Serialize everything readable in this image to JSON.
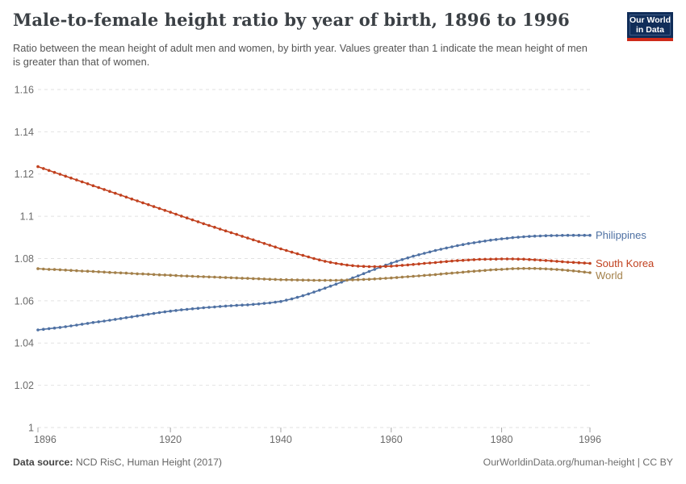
{
  "header": {
    "title": "Male-to-female height ratio by year of birth, 1896 to 1996",
    "subtitle": "Ratio between the mean height of adult men and women, by birth year. Values greater than 1 indicate the mean height of men is greater than that of women.",
    "logo_line1": "Our World",
    "logo_line2": "in Data",
    "logo_bg_color": "#102d59",
    "logo_stripe_color": "#ce2a19"
  },
  "footer": {
    "source_label": "Data source:",
    "source_value": "NCD RisC, Human Height (2017)",
    "link": "OurWorldinData.org/human-height | CC BY"
  },
  "chart_data": {
    "type": "line",
    "title": "Male-to-female height ratio by year of birth, 1896 to 1996",
    "xlabel": "",
    "ylabel": "",
    "xlim": [
      1896,
      1996
    ],
    "ylim": [
      1,
      1.16
    ],
    "grid": "horizontal-dashed",
    "legend_position": "right-end-labels",
    "marker": "dot-per-year",
    "axis_color": "#6b6b6b",
    "grid_color": "#e2e2e2",
    "xticks": [
      {
        "value": 1896,
        "label": "1896"
      },
      {
        "value": 1920,
        "label": "1920"
      },
      {
        "value": 1940,
        "label": "1940"
      },
      {
        "value": 1960,
        "label": "1960"
      },
      {
        "value": 1980,
        "label": "1980"
      },
      {
        "value": 1996,
        "label": "1996"
      }
    ],
    "yticks": [
      {
        "value": 1,
        "label": "1"
      },
      {
        "value": 1.02,
        "label": "1.02"
      },
      {
        "value": 1.04,
        "label": "1.04"
      },
      {
        "value": 1.06,
        "label": "1.06"
      },
      {
        "value": 1.08,
        "label": "1.08"
      },
      {
        "value": 1.1,
        "label": "1.1"
      },
      {
        "value": 1.12,
        "label": "1.12"
      },
      {
        "value": 1.14,
        "label": "1.14"
      },
      {
        "value": 1.16,
        "label": "1.16"
      }
    ],
    "x": [
      1896,
      1898,
      1900,
      1902,
      1904,
      1906,
      1908,
      1910,
      1912,
      1914,
      1916,
      1918,
      1920,
      1922,
      1924,
      1926,
      1928,
      1930,
      1932,
      1934,
      1936,
      1938,
      1940,
      1942,
      1944,
      1946,
      1948,
      1950,
      1952,
      1954,
      1956,
      1958,
      1960,
      1962,
      1964,
      1966,
      1968,
      1970,
      1972,
      1974,
      1976,
      1978,
      1980,
      1982,
      1984,
      1986,
      1988,
      1990,
      1992,
      1994,
      1996
    ],
    "series": [
      {
        "name": "Philippines",
        "color": "#4f71a3",
        "values": [
          1.0462,
          1.0468,
          1.0474,
          1.0481,
          1.0489,
          1.0497,
          1.0504,
          1.0512,
          1.052,
          1.0528,
          1.0536,
          1.0544,
          1.0551,
          1.0557,
          1.0562,
          1.0567,
          1.0571,
          1.0575,
          1.0578,
          1.0581,
          1.0585,
          1.059,
          1.0597,
          1.0609,
          1.0624,
          1.0641,
          1.066,
          1.0679,
          1.0698,
          1.0718,
          1.0739,
          1.0759,
          1.0778,
          1.0795,
          1.0811,
          1.0825,
          1.0838,
          1.085,
          1.0861,
          1.0871,
          1.0879,
          1.0887,
          1.0893,
          1.0899,
          1.0903,
          1.0906,
          1.0908,
          1.0909,
          1.091,
          1.091,
          1.091
        ]
      },
      {
        "name": "South Korea",
        "color": "#c1411f",
        "values": [
          1.1235,
          1.1217,
          1.1199,
          1.1181,
          1.1163,
          1.1145,
          1.1127,
          1.1109,
          1.1091,
          1.1073,
          1.1055,
          1.1037,
          1.1019,
          1.1001,
          1.0983,
          1.0965,
          1.0948,
          1.0931,
          1.0914,
          1.0897,
          1.088,
          1.0863,
          1.0846,
          1.083,
          1.0815,
          1.08,
          1.0787,
          1.0777,
          1.0769,
          1.0764,
          1.0762,
          1.0762,
          1.0764,
          1.0768,
          1.0772,
          1.0777,
          1.0781,
          1.0786,
          1.079,
          1.0793,
          1.0796,
          1.0797,
          1.0798,
          1.0798,
          1.0797,
          1.0794,
          1.0791,
          1.0787,
          1.0783,
          1.078,
          1.0777
        ]
      },
      {
        "name": "World",
        "color": "#a3804a",
        "values": [
          1.0752,
          1.0749,
          1.0747,
          1.0744,
          1.0741,
          1.0739,
          1.0736,
          1.0733,
          1.0731,
          1.0728,
          1.0726,
          1.0723,
          1.0721,
          1.0718,
          1.0716,
          1.0714,
          1.0712,
          1.071,
          1.0708,
          1.0706,
          1.0704,
          1.0702,
          1.07,
          1.0699,
          1.0698,
          1.0697,
          1.0697,
          1.0697,
          1.0698,
          1.07,
          1.0702,
          1.0705,
          1.0708,
          1.0712,
          1.0716,
          1.072,
          1.0724,
          1.0729,
          1.0733,
          1.0738,
          1.0742,
          1.0746,
          1.0749,
          1.0752,
          1.0753,
          1.0753,
          1.0751,
          1.0748,
          1.0744,
          1.0739,
          1.0733
        ]
      }
    ]
  }
}
